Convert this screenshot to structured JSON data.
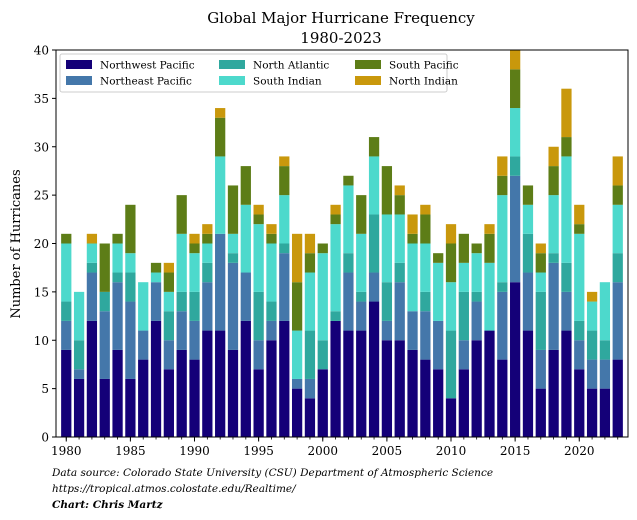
{
  "chart_data": {
    "type": "bar",
    "stacked": true,
    "title": "Global Major Hurricane Frequency",
    "subtitle": "1980-2023",
    "xlabel": "",
    "ylabel": "Number of Hurricanes",
    "ylim": [
      0,
      40
    ],
    "xlim": [
      1979.2,
      2023.8
    ],
    "yticks": [
      0,
      5,
      10,
      15,
      20,
      25,
      30,
      35,
      40
    ],
    "xticks": [
      1980,
      1985,
      1990,
      1995,
      2000,
      2005,
      2010,
      2015,
      2020
    ],
    "grid": false,
    "legend_position": "top-left",
    "legend_columns": 3,
    "x": [
      1980,
      1981,
      1982,
      1983,
      1984,
      1985,
      1986,
      1987,
      1988,
      1989,
      1990,
      1991,
      1992,
      1993,
      1994,
      1995,
      1996,
      1997,
      1998,
      1999,
      2000,
      2001,
      2002,
      2003,
      2004,
      2005,
      2006,
      2007,
      2008,
      2009,
      2010,
      2011,
      2012,
      2013,
      2014,
      2015,
      2016,
      2017,
      2018,
      2019,
      2020,
      2021,
      2022,
      2023
    ],
    "series": [
      {
        "name": "Northwest Pacific",
        "color": "#140078",
        "values": [
          9,
          6,
          12,
          6,
          9,
          6,
          8,
          12,
          7,
          9,
          8,
          11,
          11,
          9,
          12,
          7,
          10,
          12,
          5,
          4,
          7,
          12,
          11,
          11,
          14,
          10,
          10,
          9,
          8,
          7,
          4,
          7,
          10,
          11,
          8,
          16,
          11,
          5,
          9,
          11,
          7,
          5,
          5,
          8
        ]
      },
      {
        "name": "Northeast Pacific",
        "color": "#4477aa",
        "values": [
          3,
          1,
          5,
          7,
          7,
          8,
          3,
          4,
          3,
          4,
          4,
          5,
          10,
          9,
          5,
          3,
          2,
          7,
          1,
          2,
          0,
          0,
          6,
          3,
          3,
          2,
          6,
          4,
          5,
          5,
          0,
          3,
          4,
          0,
          7,
          11,
          6,
          4,
          9,
          4,
          3,
          3,
          3,
          8
        ]
      },
      {
        "name": "North Atlantic",
        "color": "#2fa89e",
        "values": [
          2,
          3,
          1,
          2,
          1,
          3,
          0,
          0,
          3,
          2,
          3,
          2,
          0,
          1,
          0,
          5,
          2,
          1,
          0,
          5,
          3,
          1,
          2,
          1,
          6,
          4,
          2,
          0,
          2,
          0,
          7,
          5,
          1,
          0,
          1,
          2,
          4,
          6,
          1,
          3,
          2,
          3,
          2,
          3
        ]
      },
      {
        "name": "South Indian",
        "color": "#4dd9cc",
        "values": [
          6,
          5,
          2,
          0,
          3,
          2,
          5,
          1,
          2,
          6,
          4,
          2,
          8,
          2,
          7,
          7,
          6,
          5,
          5,
          6,
          9,
          9,
          7,
          6,
          6,
          7,
          5,
          7,
          5,
          6,
          5,
          3,
          4,
          7,
          9,
          5,
          3,
          2,
          6,
          11,
          9,
          3,
          6,
          5
        ]
      },
      {
        "name": "South Pacific",
        "color": "#5d7d17",
        "values": [
          1,
          0,
          0,
          5,
          1,
          5,
          0,
          1,
          2,
          4,
          1,
          1,
          4,
          5,
          4,
          1,
          1,
          3,
          5,
          2,
          1,
          1,
          1,
          4,
          2,
          5,
          2,
          1,
          3,
          1,
          4,
          3,
          1,
          3,
          2,
          4,
          2,
          2,
          3,
          2,
          1,
          0,
          0,
          2
        ]
      },
      {
        "name": "North Indian",
        "color": "#c9980c",
        "values": [
          0,
          0,
          1,
          0,
          0,
          0,
          0,
          0,
          1,
          0,
          1,
          1,
          1,
          0,
          0,
          1,
          1,
          1,
          5,
          2,
          0,
          1,
          0,
          0,
          0,
          0,
          1,
          2,
          1,
          0,
          2,
          0,
          0,
          1,
          2,
          2,
          0,
          1,
          2,
          5,
          2,
          1,
          0,
          3
        ]
      }
    ]
  },
  "footnotes": {
    "source": "Data source: Colorado State University (CSU) Department of Atmospheric Science",
    "url": "https://tropical.atmos.colostate.edu/Realtime/",
    "credit": "Chart: Chris Martz"
  }
}
